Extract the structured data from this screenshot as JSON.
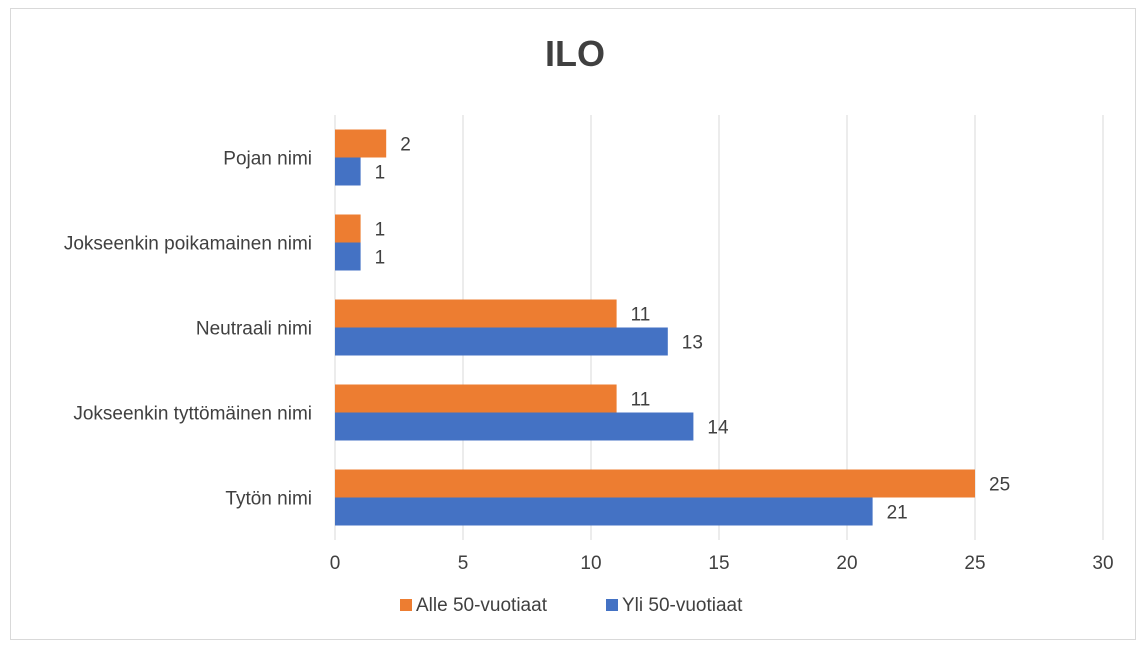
{
  "chart_data": {
    "type": "bar",
    "orientation": "horizontal",
    "title": "ILO",
    "categories": [
      "Pojan nimi",
      "Jokseenkin poikamainen nimi",
      "Neutraali nimi",
      "Jokseenkin tyttömäinen nimi",
      "Tytön nimi"
    ],
    "series": [
      {
        "name": "Alle 50-vuotiaat",
        "values": [
          2,
          1,
          11,
          11,
          25
        ],
        "color": "#ED7D31"
      },
      {
        "name": "Yli 50-vuotiaat",
        "values": [
          1,
          1,
          13,
          14,
          21
        ],
        "color": "#4472C4"
      }
    ],
    "xlim": [
      0,
      30
    ],
    "xticks": [
      0,
      5,
      10,
      15,
      20,
      25,
      30
    ],
    "xlabel": "",
    "ylabel": "",
    "grid": true,
    "legend_position": "bottom"
  }
}
